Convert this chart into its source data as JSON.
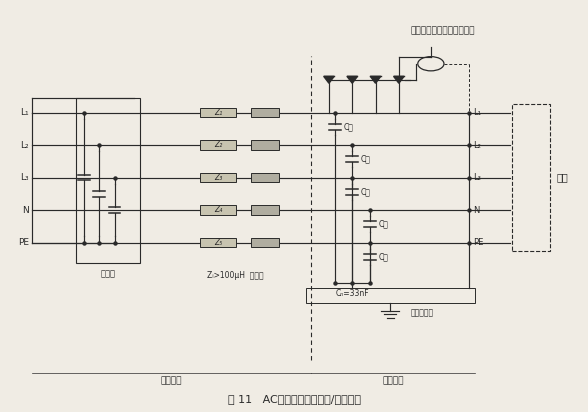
{
  "title": "图 11   AC电源线试验用耦合/去耦网络",
  "top_label": "来自瞬变脉冲发生器的信号",
  "left_labels": [
    "L₁",
    "L₂",
    "L₃",
    "N",
    "PE"
  ],
  "right_labels": [
    "L₁",
    "L₂",
    "L₃",
    "N",
    "PE"
  ],
  "z_labels": [
    "Z₁",
    "Z₂",
    "Z₃",
    "Z₄",
    "Z₅"
  ],
  "z_note": "Zᵢ>100μH  铁氧体",
  "filter_label": "滤波器",
  "decouple_label": "去耦部分",
  "couple_label": "耦合部分",
  "ground_label": "参考接地端",
  "sample_label": "试样",
  "cc_label": "Cₙ=33nF",
  "bg_color": "#f0ece4",
  "line_color": "#2a2a2a",
  "fig_width": 5.88,
  "fig_height": 4.12,
  "dpi": 100
}
